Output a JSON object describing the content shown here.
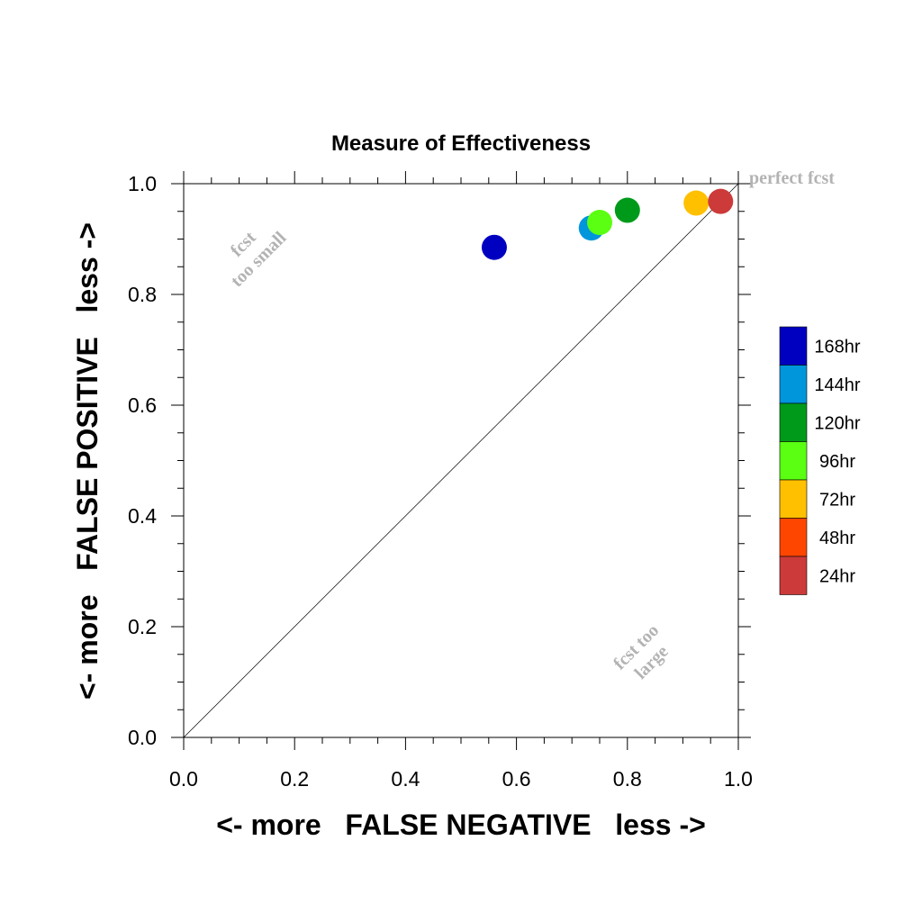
{
  "chart_data": {
    "type": "scatter",
    "title": "Measure of Effectiveness",
    "xlabel": "<- more   FALSE NEGATIVE   less ->",
    "ylabel": "<- more   FALSE POSITIVE   less ->",
    "xlim": [
      0.0,
      1.0
    ],
    "ylim": [
      0.0,
      1.0
    ],
    "xticks": [
      "0.0",
      "0.2",
      "0.4",
      "0.6",
      "0.8",
      "1.0"
    ],
    "yticks": [
      "0.0",
      "0.2",
      "0.4",
      "0.6",
      "0.8",
      "1.0"
    ],
    "grid": false,
    "reference_line": "diagonal",
    "annotations": {
      "perfect": "perfect fcst",
      "too_small": [
        "fcst",
        "too small"
      ],
      "too_large": [
        "fcst too",
        "large"
      ]
    },
    "legend_position": "right",
    "series": [
      {
        "name": "168hr",
        "color": "#0000c0",
        "x": 0.56,
        "y": 0.885
      },
      {
        "name": "144hr",
        "color": "#0096dc",
        "x": 0.735,
        "y": 0.92
      },
      {
        "name": "120hr",
        "color": "#009a1a",
        "x": 0.8,
        "y": 0.952
      },
      {
        "name": "96hr",
        "color": "#5aff12",
        "x": 0.75,
        "y": 0.93
      },
      {
        "name": "72hr",
        "color": "#ffc000",
        "x": 0.924,
        "y": 0.965
      },
      {
        "name": "48hr",
        "color": "#ff4600",
        "x": null,
        "y": null
      },
      {
        "name": "24hr",
        "color": "#cc3a3a",
        "x": 0.968,
        "y": 0.968
      }
    ]
  }
}
